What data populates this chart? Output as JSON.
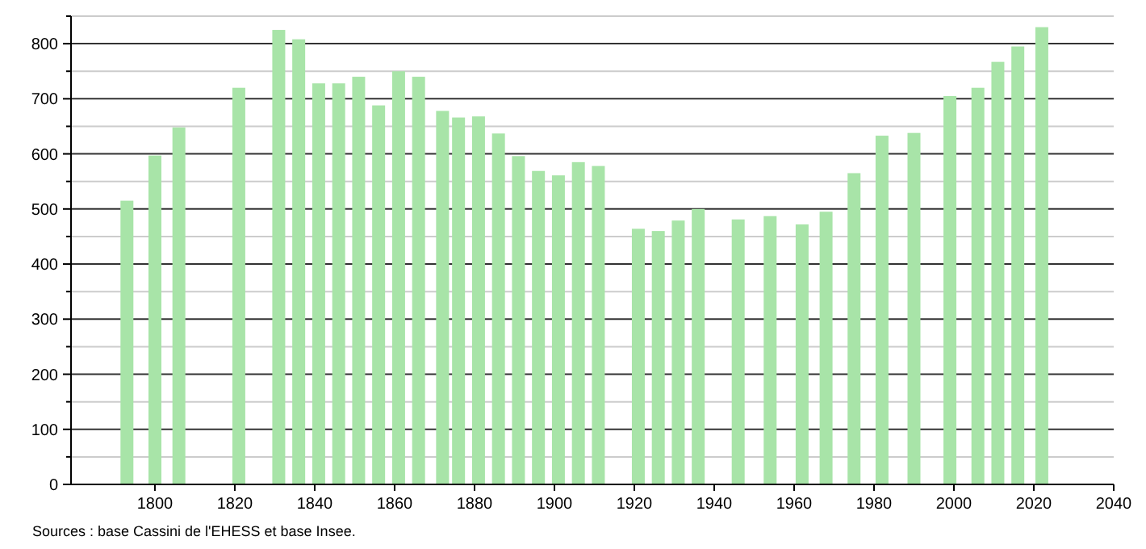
{
  "chart_data": {
    "type": "bar",
    "x": [
      1793,
      1800,
      1806,
      1821,
      1831,
      1836,
      1841,
      1846,
      1851,
      1856,
      1861,
      1866,
      1872,
      1876,
      1881,
      1886,
      1891,
      1896,
      1901,
      1906,
      1911,
      1921,
      1926,
      1931,
      1936,
      1946,
      1954,
      1962,
      1968,
      1975,
      1982,
      1990,
      1999,
      2006,
      2011,
      2016,
      2022
    ],
    "values": [
      515,
      597,
      648,
      720,
      825,
      808,
      728,
      728,
      740,
      688,
      750,
      740,
      678,
      666,
      668,
      637,
      596,
      569,
      561,
      585,
      578,
      464,
      460,
      479,
      500,
      481,
      487,
      472,
      495,
      565,
      633,
      638,
      705,
      720,
      767,
      795,
      830
    ],
    "color": "#a8e4a8",
    "xlim": [
      1779,
      2040
    ],
    "xticks": [
      1800,
      1820,
      1840,
      1860,
      1880,
      1900,
      1920,
      1940,
      1960,
      1980,
      2000,
      2020,
      2040
    ],
    "ylim": [
      0,
      850
    ],
    "yticks": [
      0,
      {
        "value": 50,
        "label": null
      },
      100,
      {
        "value": 150,
        "label": null
      },
      200,
      {
        "value": 250,
        "label": null
      },
      300,
      {
        "value": 350,
        "label": null
      },
      400,
      {
        "value": 450,
        "label": null
      },
      500,
      {
        "value": 550,
        "label": null
      },
      600,
      {
        "value": 650,
        "label": null
      },
      700,
      {
        "value": 750,
        "label": null
      },
      800,
      {
        "value": 850,
        "label": null
      }
    ],
    "grid": true,
    "annotations": [
      "Sources : base Cassini de l'EHESS et base Insee."
    ]
  }
}
